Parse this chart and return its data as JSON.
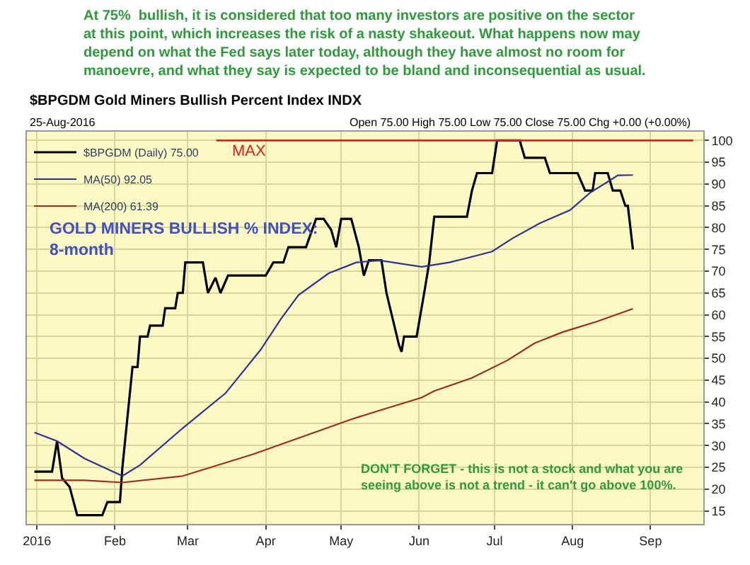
{
  "chart_data": {
    "type": "line",
    "title": "At 75%  bullish, it is considered that too many investors are positive on the sector at this point, which increases the risk of a nasty shakeout. What happens now may depend on what the Fed says later today, although they have almost no room for manoevre, and what they say is expected to be bland and inconsequential as usual.",
    "subtitle": "$BPGDM Gold Miners Bullish Percent Index INDX",
    "annotations": [
      "25-Aug-2016",
      "Open 75.00 High 75.00 Low 75.00 Close 75.00 Chg +0.00 (+0.00%)",
      "GOLD MINERS BULLISH % INDEX:\n8-month",
      "DON'T FORGET - this is not a stock and what you are\nseeing above is not a trend - it can't go above 100%."
    ],
    "series": [
      {
        "name": "$BPGDM (Daily) 75.00",
        "color": "#000000",
        "x": [
          "2015-12-31",
          "2016-01-07",
          "2016-01-09",
          "2016-01-11",
          "2016-01-14",
          "2016-01-17",
          "2016-01-27",
          "2016-01-29",
          "2016-02-03",
          "2016-02-04",
          "2016-02-08",
          "2016-02-10",
          "2016-02-11",
          "2016-02-14",
          "2016-02-15",
          "2016-02-20",
          "2016-02-21",
          "2016-02-25",
          "2016-02-26",
          "2016-02-28",
          "2016-02-29",
          "2016-03-07",
          "2016-03-09",
          "2016-03-12",
          "2016-03-14",
          "2016-03-17",
          "2016-04-01",
          "2016-04-04",
          "2016-04-08",
          "2016-04-10",
          "2016-04-17",
          "2016-04-21",
          "2016-04-24",
          "2016-04-27",
          "2016-04-29",
          "2016-05-01",
          "2016-05-05",
          "2016-05-08",
          "2016-05-10",
          "2016-05-12",
          "2016-05-17",
          "2016-05-19",
          "2016-05-24",
          "2016-05-25",
          "2016-05-26",
          "2016-05-31",
          "2016-06-03",
          "2016-06-05",
          "2016-06-07",
          "2016-06-20",
          "2016-06-22",
          "2016-06-24",
          "2016-06-30",
          "2016-07-02",
          "2016-07-11",
          "2016-07-13",
          "2016-07-21",
          "2016-07-23",
          "2016-08-03",
          "2016-08-06",
          "2016-08-09",
          "2016-08-10",
          "2016-08-15",
          "2016-08-17",
          "2016-08-20",
          "2016-08-22",
          "2016-08-23",
          "2016-08-25"
        ],
        "values": [
          24,
          24,
          31,
          22.5,
          20.5,
          14,
          14,
          17,
          17,
          25,
          48,
          48,
          55,
          55,
          57.5,
          57.5,
          61.5,
          61.5,
          65,
          65,
          72,
          72,
          65,
          68.5,
          65,
          69,
          69,
          72,
          72,
          75.5,
          75.5,
          82,
          82,
          79.5,
          75.5,
          82,
          82,
          75.5,
          69,
          72.5,
          72.5,
          65,
          53,
          51.5,
          55,
          55,
          65,
          72,
          82.5,
          82.5,
          88.5,
          92.5,
          92.5,
          100,
          100,
          96,
          96,
          92.5,
          92.5,
          88.5,
          88.5,
          92.5,
          92.5,
          88.5,
          88.5,
          85,
          85,
          75
        ]
      },
      {
        "name": "MA(50) 92.05",
        "color": "#2e3192",
        "x": [
          "2015-12-31",
          "2016-01-09",
          "2016-01-20",
          "2016-02-04",
          "2016-02-11",
          "2016-02-28",
          "2016-03-16",
          "2016-03-30",
          "2016-04-07",
          "2016-04-14",
          "2016-04-26",
          "2016-05-07",
          "2016-05-16",
          "2016-06-02",
          "2016-06-13",
          "2016-06-20",
          "2016-06-30",
          "2016-07-08",
          "2016-07-19",
          "2016-07-31",
          "2016-08-08",
          "2016-08-15",
          "2016-08-19",
          "2016-08-25"
        ],
        "values": [
          33,
          31,
          27,
          23,
          25.5,
          34,
          42,
          52,
          59,
          64.5,
          69.5,
          72,
          72.5,
          71,
          72,
          73,
          74.5,
          77.5,
          81,
          84,
          88,
          90.5,
          92,
          92.05
        ]
      },
      {
        "name": "MA(200) 61.39",
        "color": "#9b2c1e",
        "x": [
          "2015-12-31",
          "2016-01-20",
          "2016-02-04",
          "2016-02-28",
          "2016-03-27",
          "2016-04-18",
          "2016-05-05",
          "2016-05-16",
          "2016-06-02",
          "2016-06-07",
          "2016-06-22",
          "2016-07-06",
          "2016-07-17",
          "2016-07-28",
          "2016-08-11",
          "2016-08-25"
        ],
        "values": [
          22,
          22,
          21.5,
          23,
          28,
          32.5,
          36,
          38,
          41,
          42.5,
          45.5,
          49.5,
          53.5,
          56,
          58.5,
          61.39
        ]
      }
    ],
    "xlim": [
      "2015-12-28",
      "2016-09-22"
    ],
    "xticks": [
      {
        "value": "2016-01-01",
        "label": "2016"
      },
      {
        "value": "2016-02-01",
        "label": "Feb"
      },
      {
        "value": "2016-03-01",
        "label": "Mar"
      },
      {
        "value": "2016-04-01",
        "label": "Apr"
      },
      {
        "value": "2016-05-01",
        "label": "May"
      },
      {
        "value": "2016-06-01",
        "label": "Jun"
      },
      {
        "value": "2016-07-01",
        "label": "Jul"
      },
      {
        "value": "2016-08-01",
        "label": "Aug"
      },
      {
        "value": "2016-09-01",
        "label": "Sep"
      }
    ],
    "ylim": [
      12,
      102
    ],
    "yticks": [
      15,
      20,
      25,
      30,
      35,
      40,
      45,
      50,
      55,
      60,
      65,
      70,
      75,
      80,
      85,
      90,
      95,
      100
    ],
    "ref_lines": [
      {
        "axis": "y",
        "value": 100,
        "label": "MAX",
        "color": "#e02020"
      }
    ],
    "grid": true,
    "legend": "top left",
    "marker": "none",
    "line_style": "solid"
  }
}
